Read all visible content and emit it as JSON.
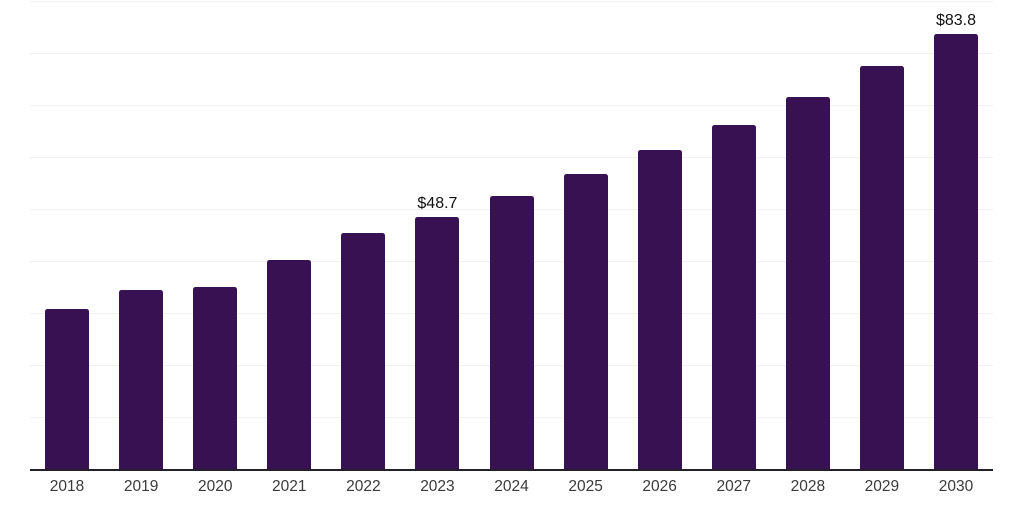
{
  "chart_data": {
    "type": "bar",
    "title": "",
    "xlabel": "",
    "ylabel": "",
    "categories": [
      "2018",
      "2019",
      "2020",
      "2021",
      "2022",
      "2023",
      "2024",
      "2025",
      "2026",
      "2027",
      "2028",
      "2029",
      "2030"
    ],
    "values": [
      31.0,
      34.6,
      35.2,
      40.4,
      45.5,
      48.7,
      52.6,
      56.9,
      61.5,
      66.4,
      71.8,
      77.6,
      83.8
    ],
    "data_labels": [
      {
        "category": "2023",
        "label": "$48.7"
      },
      {
        "category": "2030",
        "label": "$83.8"
      }
    ],
    "ylim": [
      0,
      90
    ],
    "gridline_step": 10,
    "grid": true,
    "legend_position": "none",
    "colors": {
      "bar": "#371152",
      "gridline": "#f1f1f4",
      "axis_line": "#23202c",
      "data_label_text": "#111111",
      "tick_text": "#3a3a3a",
      "background": "#ffffff"
    }
  }
}
